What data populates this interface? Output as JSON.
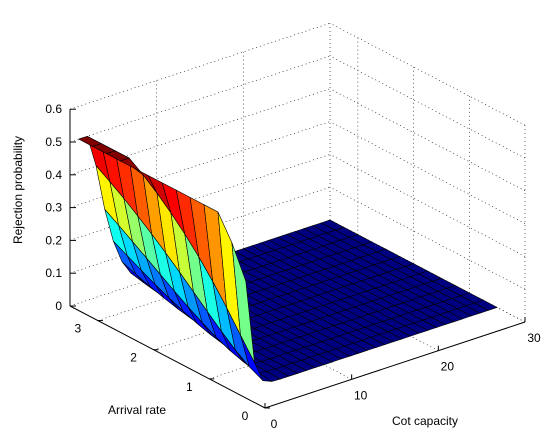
{
  "chart_data": {
    "type": "surface",
    "title": "",
    "xlabel": "Cot capacity",
    "ylabel": "Arrival rate",
    "zlabel": "Rejection probability",
    "xlim": [
      0,
      30
    ],
    "ylim": [
      0,
      3.5
    ],
    "zlim": [
      0,
      0.6
    ],
    "x_ticks": [
      "0",
      "10",
      "20",
      "30"
    ],
    "y_ticks": [
      "0",
      "1",
      "2",
      "3"
    ],
    "z_ticks": [
      "0",
      "0.1",
      "0.2",
      "0.3",
      "0.4",
      "0.5",
      "0.6"
    ],
    "grid": true,
    "colormap": "jet",
    "x_range": [
      1,
      30
    ],
    "y_range": [
      0.5,
      3.5
    ],
    "surface_model": "Erlang B blocking probability (cot capacity, arrival rate)",
    "annotations": {
      "peak": {
        "x": 1,
        "y": 3.5,
        "z": 0.5
      },
      "far_corner": {
        "x": 30,
        "y": 3.5,
        "z": 0.0
      },
      "near_corner": {
        "x": 1,
        "y": 0.5,
        "z": 0.0
      }
    }
  }
}
